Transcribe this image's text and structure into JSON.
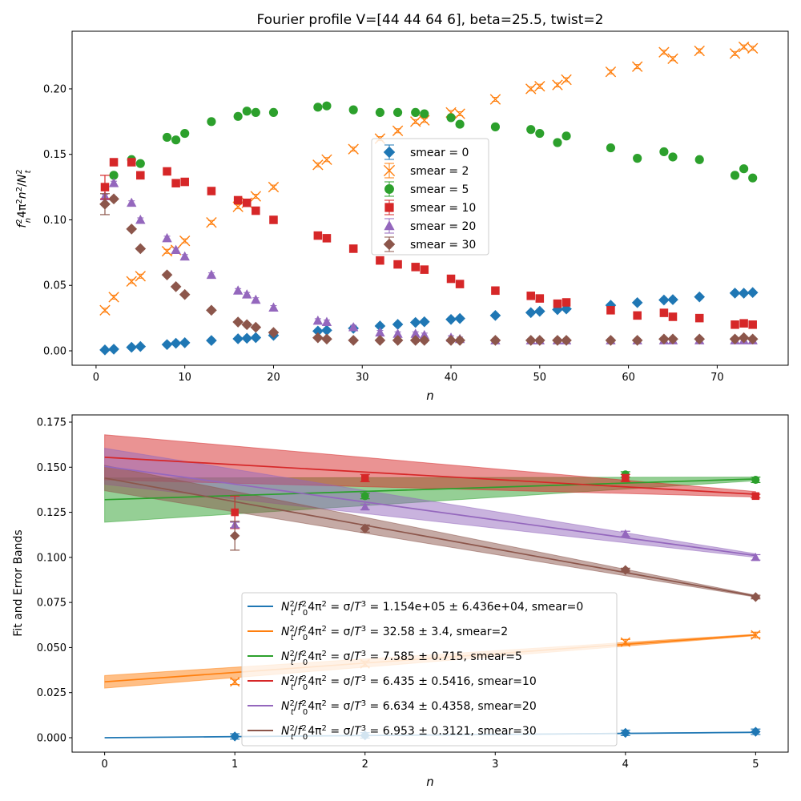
{
  "chart_data": [
    {
      "type": "scatter",
      "title": "Fourier profile V=[44 44 64  6], beta=25.5, twist=2",
      "xlabel": "n",
      "ylabel": "f_n^2 4π^2 n^2/N_t^2",
      "xlim": [
        -2.7,
        78
      ],
      "ylim": [
        -0.011,
        0.244
      ],
      "xticks": [
        0,
        10,
        20,
        30,
        40,
        50,
        60,
        70
      ],
      "yticks": [
        0.0,
        0.05,
        0.1,
        0.15,
        0.2
      ],
      "yticklabels": [
        "0.00",
        "0.05",
        "0.10",
        "0.15",
        "0.20"
      ],
      "grid": false,
      "legend_position": "center",
      "legend": [
        "smear = 0",
        "smear = 2",
        "smear = 5",
        "smear = 10",
        "smear = 20",
        "smear = 30"
      ],
      "series": [
        {
          "name": "smear = 0",
          "color": "#1f77b4",
          "marker": "diamond",
          "x": [
            1,
            2,
            4,
            5,
            8,
            9,
            10,
            13,
            16,
            17,
            18,
            20,
            25,
            26,
            29,
            32,
            34,
            36,
            37,
            40,
            41,
            45,
            49,
            50,
            52,
            53,
            58,
            61,
            64,
            65,
            68,
            72,
            73,
            74
          ],
          "y": [
            0.0007,
            0.0013,
            0.0027,
            0.0033,
            0.0048,
            0.0058,
            0.0062,
            0.0079,
            0.0092,
            0.0096,
            0.0101,
            0.0118,
            0.0151,
            0.0157,
            0.0172,
            0.019,
            0.0202,
            0.0217,
            0.0222,
            0.024,
            0.0247,
            0.027,
            0.0292,
            0.0302,
            0.0315,
            0.032,
            0.0348,
            0.0368,
            0.0388,
            0.0391,
            0.0412,
            0.0441,
            0.044,
            0.0445
          ]
        },
        {
          "name": "smear = 2",
          "color": "#ff7f0e",
          "marker": "x",
          "x": [
            1,
            2,
            4,
            5,
            8,
            9,
            10,
            13,
            16,
            17,
            18,
            20,
            25,
            26,
            29,
            32,
            34,
            36,
            37,
            40,
            41,
            45,
            49,
            50,
            52,
            53,
            58,
            61,
            64,
            65,
            68,
            72,
            73,
            74
          ],
          "y": [
            0.031,
            0.041,
            0.053,
            0.057,
            0.076,
            0.077,
            0.084,
            0.098,
            0.11,
            0.113,
            0.118,
            0.125,
            0.142,
            0.146,
            0.154,
            0.162,
            0.168,
            0.175,
            0.176,
            0.182,
            0.181,
            0.192,
            0.2,
            0.202,
            0.203,
            0.207,
            0.213,
            0.217,
            0.228,
            0.223,
            0.229,
            0.227,
            0.232,
            0.231
          ]
        },
        {
          "name": "smear = 5",
          "color": "#2ca02c",
          "marker": "circle",
          "x": [
            2,
            4,
            5,
            8,
            9,
            10,
            13,
            16,
            17,
            18,
            20,
            25,
            26,
            29,
            32,
            34,
            36,
            37,
            40,
            41,
            45,
            49,
            50,
            52,
            53,
            58,
            61,
            64,
            65,
            68,
            72,
            73,
            74
          ],
          "y": [
            0.134,
            0.146,
            0.143,
            0.163,
            0.161,
            0.166,
            0.175,
            0.179,
            0.183,
            0.182,
            0.182,
            0.186,
            0.187,
            0.184,
            0.182,
            0.182,
            0.182,
            0.181,
            0.178,
            0.173,
            0.171,
            0.169,
            0.166,
            0.159,
            0.164,
            0.155,
            0.147,
            0.152,
            0.148,
            0.146,
            0.134,
            0.139,
            0.132
          ]
        },
        {
          "name": "smear = 10",
          "color": "#d62728",
          "marker": "square",
          "x": [
            1,
            2,
            4,
            5,
            8,
            9,
            10,
            13,
            16,
            17,
            18,
            20,
            25,
            26,
            29,
            32,
            34,
            36,
            37,
            40,
            41,
            45,
            49,
            50,
            52,
            53,
            58,
            61,
            64,
            65,
            68,
            72,
            73,
            74
          ],
          "y": [
            0.125,
            0.144,
            0.144,
            0.134,
            0.137,
            0.128,
            0.129,
            0.122,
            0.115,
            0.113,
            0.107,
            0.1,
            0.088,
            0.086,
            0.078,
            0.069,
            0.066,
            0.064,
            0.062,
            0.055,
            0.051,
            0.046,
            0.042,
            0.04,
            0.036,
            0.037,
            0.031,
            0.027,
            0.029,
            0.026,
            0.025,
            0.02,
            0.021,
            0.02
          ]
        },
        {
          "name": "smear = 20",
          "color": "#9467bd",
          "marker": "triangle",
          "x": [
            1,
            2,
            4,
            5,
            8,
            9,
            10,
            13,
            16,
            17,
            18,
            20,
            25,
            26,
            29,
            32,
            34,
            36,
            37,
            40,
            41,
            45,
            49,
            50,
            52,
            53,
            58,
            61,
            64,
            65,
            68,
            72,
            73,
            74
          ],
          "y": [
            0.118,
            0.128,
            0.113,
            0.1,
            0.086,
            0.077,
            0.072,
            0.058,
            0.046,
            0.043,
            0.039,
            0.033,
            0.023,
            0.022,
            0.018,
            0.014,
            0.013,
            0.013,
            0.012,
            0.01,
            0.009,
            0.008,
            0.008,
            0.008,
            0.008,
            0.008,
            0.008,
            0.008,
            0.008,
            0.008,
            0.008,
            0.008,
            0.008,
            0.008
          ]
        },
        {
          "name": "smear = 30",
          "color": "#8c564b",
          "marker": "diamond",
          "x": [
            1,
            2,
            4,
            5,
            8,
            9,
            10,
            13,
            16,
            17,
            18,
            20,
            25,
            26,
            29,
            32,
            34,
            36,
            37,
            40,
            41,
            45,
            49,
            50,
            52,
            53,
            58,
            61,
            64,
            65,
            68,
            72,
            73,
            74
          ],
          "y": [
            0.112,
            0.116,
            0.093,
            0.078,
            0.058,
            0.049,
            0.043,
            0.031,
            0.022,
            0.02,
            0.018,
            0.014,
            0.01,
            0.009,
            0.008,
            0.008,
            0.008,
            0.008,
            0.008,
            0.008,
            0.008,
            0.008,
            0.008,
            0.008,
            0.008,
            0.008,
            0.008,
            0.008,
            0.009,
            0.009,
            0.009,
            0.009,
            0.01,
            0.009
          ]
        }
      ]
    },
    {
      "type": "line",
      "xlabel": "n",
      "ylabel": "Fit and Error Bands",
      "xlim": [
        -0.25,
        5.25
      ],
      "ylim": [
        -0.008,
        0.179
      ],
      "xticks": [
        0,
        1,
        2,
        3,
        4,
        5
      ],
      "yticks": [
        0.0,
        0.025,
        0.05,
        0.075,
        0.1,
        0.125,
        0.15,
        0.175
      ],
      "yticklabels": [
        "0.000",
        "0.025",
        "0.050",
        "0.075",
        "0.100",
        "0.125",
        "0.150",
        "0.175"
      ],
      "grid": false,
      "legend_position": "lower center",
      "legend": [
        "N_t^2/f_0^2 4π^2 = σ/T^3 =  1.154e+05 ± 6.436e+04, smear=0",
        "N_t^2/f_0^2 4π^2 = σ/T^3 =  32.58 ± 3.4, smear=2",
        "N_t^2/f_0^2 4π^2 = σ/T^3 =  7.585 ± 0.715, smear=5",
        "N_t^2/f_0^2 4π^2 = σ/T^3 =  6.435 ± 0.5416, smear=10",
        "N_t^2/f_0^2 4π^2 = σ/T^3 =  6.634 ± 0.4358, smear=20",
        "N_t^2/f_0^2 4π^2 = σ/T^3 =  6.953 ± 0.3121, smear=30"
      ],
      "series": [
        {
          "name": "smear=0",
          "color": "#1f77b4",
          "marker": "diamond",
          "x": [
            1,
            2,
            4,
            5
          ],
          "y": [
            0.0007,
            0.0013,
            0.0027,
            0.0033
          ],
          "fit": {
            "x": [
              0,
              5
            ],
            "y": [
              0.0,
              0.003
            ]
          },
          "band_upper": [
            0.0,
            0.0032
          ],
          "band_lower": [
            0.0,
            0.0028
          ]
        },
        {
          "name": "smear=2",
          "color": "#ff7f0e",
          "marker": "x",
          "x": [
            1,
            2,
            4,
            5
          ],
          "y": [
            0.031,
            0.041,
            0.053,
            0.057
          ],
          "fit": {
            "x": [
              0,
              5
            ],
            "y": [
              0.031,
              0.057
            ]
          },
          "band_upper": [
            0.0345,
            0.0574
          ],
          "band_lower": [
            0.0275,
            0.0566
          ]
        },
        {
          "name": "smear=5",
          "color": "#2ca02c",
          "marker": "circle",
          "x": [
            2,
            4,
            5
          ],
          "y": [
            0.134,
            0.146,
            0.143
          ],
          "fit": {
            "x": [
              0,
              5
            ],
            "y": [
              0.132,
              0.1435
            ]
          },
          "band_upper": [
            0.144,
            0.1445
          ],
          "band_lower": [
            0.1195,
            0.1425
          ]
        },
        {
          "name": "smear=10",
          "color": "#d62728",
          "marker": "square",
          "x": [
            1,
            2,
            4,
            5
          ],
          "y": [
            0.125,
            0.144,
            0.144,
            0.134
          ],
          "err": [
            0.009,
            0.002,
            0.002,
            0.001
          ],
          "fit": {
            "x": [
              0,
              5
            ],
            "y": [
              0.1555,
              0.135
            ]
          },
          "band_upper": [
            0.168,
            0.1365
          ],
          "band_lower": [
            0.143,
            0.1335
          ]
        },
        {
          "name": "smear=20",
          "color": "#9467bd",
          "marker": "triangle",
          "x": [
            1,
            2,
            4,
            5
          ],
          "y": [
            0.118,
            0.128,
            0.113,
            0.1
          ],
          "fit": {
            "x": [
              0,
              5
            ],
            "y": [
              0.1505,
              0.101
            ]
          },
          "band_upper": [
            0.1605,
            0.102
          ],
          "band_lower": [
            0.1405,
            0.1
          ]
        },
        {
          "name": "smear=30",
          "color": "#8c564b",
          "marker": "diamond",
          "x": [
            1,
            2,
            4,
            5
          ],
          "y": [
            0.112,
            0.116,
            0.093,
            0.078
          ],
          "err": [
            0.008,
            0.002,
            0.001,
            0.001
          ],
          "fit": {
            "x": [
              0,
              5
            ],
            "y": [
              0.144,
              0.0785
            ]
          },
          "band_upper": [
            0.151,
            0.079
          ],
          "band_lower": [
            0.137,
            0.078
          ]
        }
      ]
    }
  ]
}
